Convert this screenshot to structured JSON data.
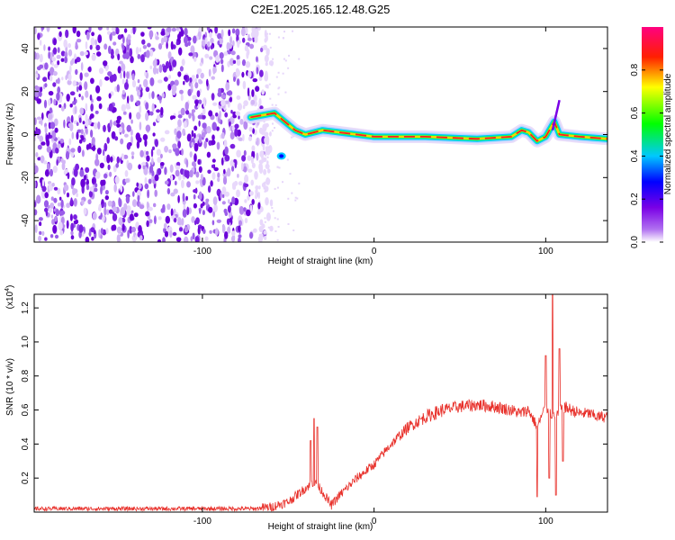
{
  "title": "C2E1.2025.165.12.48.G25",
  "chart_data": [
    {
      "type": "heatmap",
      "xlabel": "Height of straight line (km)",
      "ylabel": "Frequency (Hz)",
      "xlim": [
        -198,
        136
      ],
      "ylim": [
        -50,
        50
      ],
      "x_ticks": [
        -100,
        0,
        100
      ],
      "y_ticks": [
        -40,
        -20,
        0,
        20,
        40
      ],
      "colorbar": {
        "label": "Normalized spectral amplitude",
        "range": [
          0,
          1
        ],
        "ticks": [
          "0.0",
          "0.2",
          "0.4",
          "0.6",
          "0.8"
        ],
        "tick_values": [
          0,
          0.2,
          0.4,
          0.6,
          0.8
        ],
        "colors": [
          "#ffffff",
          "#7a00e6",
          "#0000ff",
          "#00c8ff",
          "#00ff00",
          "#ffff00",
          "#ff0000",
          "#ff0080"
        ]
      },
      "noise_region_x": [
        -198,
        -65
      ],
      "ridge": [
        [
          -72,
          8
        ],
        [
          -65,
          9
        ],
        [
          -58,
          10
        ],
        [
          -52,
          6
        ],
        [
          -46,
          2
        ],
        [
          -40,
          0
        ],
        [
          -35,
          1
        ],
        [
          -30,
          2
        ],
        [
          -20,
          1
        ],
        [
          -10,
          0
        ],
        [
          0,
          -1
        ],
        [
          10,
          -1
        ],
        [
          30,
          -1
        ],
        [
          60,
          -2
        ],
        [
          80,
          -1
        ],
        [
          86,
          2
        ],
        [
          90,
          1
        ],
        [
          95,
          -3
        ],
        [
          100,
          -1
        ],
        [
          105,
          6
        ],
        [
          108,
          0
        ],
        [
          120,
          -1
        ],
        [
          136,
          -2
        ]
      ]
    },
    {
      "type": "line",
      "xlabel": "Height of straight line (km)",
      "ylabel": "SNR (10 * v/v)",
      "multiplier": "(x10",
      "multiplier_exp": "4",
      "multiplier_close": ")",
      "xlim": [
        -198,
        136
      ],
      "ylim": [
        0,
        1.28
      ],
      "x_ticks": [
        -100,
        0,
        100
      ],
      "y_ticks": [
        0.2,
        0.4,
        0.6,
        0.8,
        1.0,
        1.2
      ],
      "y_tick_labels": [
        "0.2",
        "0.4",
        "0.6",
        "0.8",
        "1.0",
        "1.2"
      ],
      "color": "#e8302a",
      "envelope_x": [
        -198,
        -150,
        -100,
        -70,
        -60,
        -50,
        -40,
        -35,
        -30,
        -25,
        -20,
        -10,
        0,
        10,
        20,
        30,
        40,
        50,
        60,
        70,
        80,
        85,
        90,
        95,
        100,
        105,
        110,
        115,
        120,
        125,
        130,
        136
      ],
      "envelope_y": [
        0.02,
        0.02,
        0.02,
        0.02,
        0.03,
        0.06,
        0.14,
        0.18,
        0.12,
        0.04,
        0.1,
        0.2,
        0.28,
        0.4,
        0.5,
        0.56,
        0.6,
        0.62,
        0.63,
        0.62,
        0.6,
        0.58,
        0.6,
        0.5,
        0.62,
        0.55,
        0.62,
        0.6,
        0.58,
        0.58,
        0.56,
        0.56
      ],
      "peaks": [
        [
          -35,
          0.55
        ],
        [
          -33,
          0.5
        ],
        [
          -37,
          0.42
        ],
        [
          95,
          0.09
        ],
        [
          100,
          0.92
        ],
        [
          102,
          0.2
        ],
        [
          104,
          1.28
        ],
        [
          106,
          0.1
        ],
        [
          108,
          0.96
        ],
        [
          110,
          0.3
        ]
      ]
    }
  ]
}
